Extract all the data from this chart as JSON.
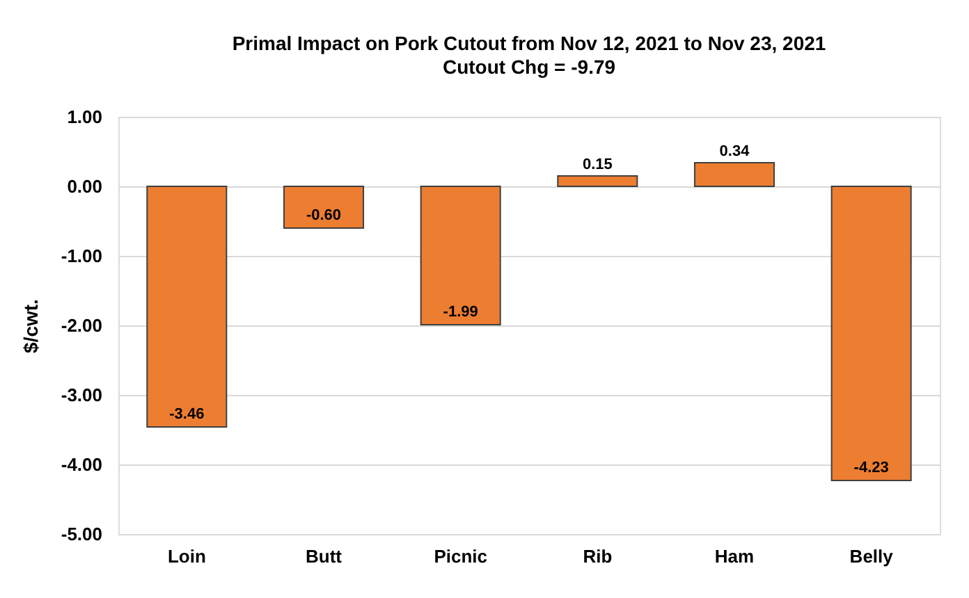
{
  "chart_data": {
    "type": "bar",
    "title": "Primal Impact on Pork Cutout from Nov 12, 2021 to Nov 23, 2021",
    "subtitle": "Cutout Chg = -9.79",
    "ylabel": "$/cwt.",
    "categories": [
      "Loin",
      "Butt",
      "Picnic",
      "Rib",
      "Ham",
      "Belly"
    ],
    "values": [
      -3.46,
      -0.6,
      -1.99,
      0.15,
      0.34,
      -4.23
    ],
    "value_labels": [
      "-3.46",
      "-0.60",
      "-1.99",
      "0.15",
      "0.34",
      "-4.23"
    ],
    "color": "#ed7d31",
    "ylim": [
      -5,
      1
    ],
    "yticks": [
      {
        "value": 1,
        "label": "1.00"
      },
      {
        "value": 0,
        "label": "0.00"
      },
      {
        "value": -1,
        "label": "-1.00"
      },
      {
        "value": -2,
        "label": "-2.00"
      },
      {
        "value": -3,
        "label": "-3.00"
      },
      {
        "value": -4,
        "label": "-4.00"
      },
      {
        "value": -5,
        "label": "-5.00"
      }
    ],
    "grid": "y"
  }
}
